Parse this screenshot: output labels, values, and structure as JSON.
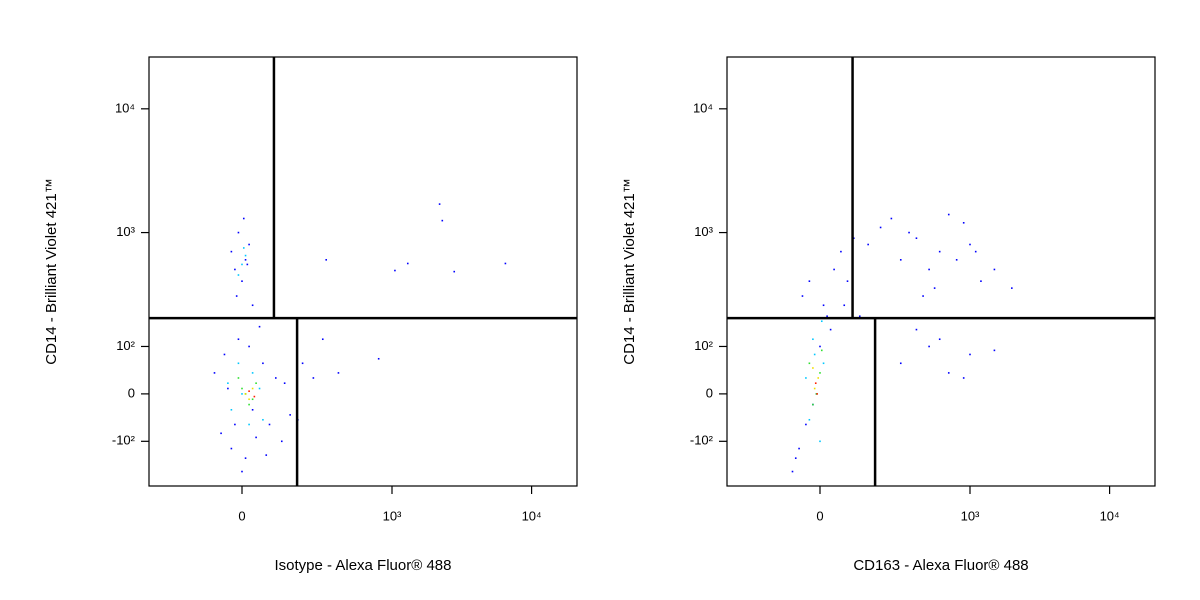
{
  "chart_data": [
    {
      "type": "scatter",
      "xlabel": "Isotype - Alexa Fluor® 488",
      "ylabel": "CD14 - Brilliant Violet 421™",
      "xlim": [
        -376,
        21100
      ],
      "ylim": [
        -268,
        26200
      ],
      "xticks": [
        0,
        {
          "value": 1000,
          "label": "10³"
        },
        {
          "value": 10000,
          "label": "10⁴"
        }
      ],
      "yticks": [
        {
          "value": -100,
          "label": "-10²"
        },
        0,
        {
          "value": 100,
          "label": "10²"
        },
        {
          "value": 1000,
          "label": "10³"
        },
        {
          "value": 10000,
          "label": "10⁴"
        }
      ],
      "gates": {
        "y": 192,
        "x_upper": 94,
        "x_lower": 177
      },
      "series": [
        {
          "color": "#0000ff",
          "x": [
            -60,
            -30,
            10,
            40,
            80,
            120,
            150,
            -80,
            -50,
            20,
            60,
            100,
            -20,
            0,
            30,
            -40,
            70,
            130,
            -10,
            50,
            0,
            -20,
            10,
            20,
            -10,
            5,
            -30,
            15,
            30,
            -15,
            200,
            300,
            400,
            800,
            2200,
            2300,
            2800,
            1300,
            1050,
            6500,
            320,
            250,
            180
          ],
          "y": [
            -80,
            -120,
            -150,
            -90,
            -60,
            -100,
            -40,
            40,
            80,
            100,
            60,
            30,
            -60,
            -200,
            -30,
            10,
            -140,
            20,
            120,
            160,
            400,
            500,
            600,
            800,
            1000,
            1300,
            700,
            550,
            250,
            300,
            60,
            120,
            40,
            70,
            1700,
            1250,
            480,
            560,
            490,
            560,
            600,
            30,
            -50
          ]
        },
        {
          "color": "#00c8ff",
          "x": [
            -30,
            0,
            30,
            60,
            -10,
            20,
            50,
            -40,
            0,
            10,
            -10,
            5
          ],
          "y": [
            -30,
            0,
            40,
            -50,
            60,
            -60,
            10,
            20,
            550,
            650,
            450,
            750
          ]
        },
        {
          "color": "#30e030",
          "x": [
            0,
            20,
            40,
            -10,
            30,
            10
          ],
          "y": [
            10,
            -20,
            20,
            30,
            -10,
            0
          ]
        },
        {
          "color": "#f0e000",
          "x": [
            10,
            30,
            20
          ],
          "y": [
            0,
            10,
            -10
          ]
        },
        {
          "color": "#ff2000",
          "x": [
            20,
            35
          ],
          "y": [
            5,
            -5
          ]
        }
      ]
    },
    {
      "type": "scatter",
      "xlabel": "CD163 - Alexa Fluor® 488",
      "ylabel": "CD14 - Brilliant Violet 421™",
      "xlim": [
        -376,
        21100
      ],
      "ylim": [
        -268,
        26200
      ],
      "xticks": [
        0,
        {
          "value": 1000,
          "label": "10³"
        },
        {
          "value": 10000,
          "label": "10⁴"
        }
      ],
      "yticks": [
        {
          "value": -100,
          "label": "-10²"
        },
        0,
        {
          "value": 100,
          "label": "10²"
        },
        {
          "value": 1000,
          "label": "10³"
        },
        {
          "value": 10000,
          "label": "10⁴"
        }
      ],
      "gates": {
        "y": 192,
        "x_upper": 96,
        "x_lower": 177
      },
      "series": [
        {
          "color": "#0000ff",
          "x": [
            -80,
            -60,
            -40,
            -20,
            0,
            20,
            -50,
            -30,
            10,
            -70,
            30,
            40,
            60,
            100,
            80,
            150,
            200,
            300,
            400,
            500,
            600,
            800,
            1000,
            1200,
            1500,
            2000,
            250,
            350,
            700,
            900,
            1100,
            450,
            550,
            300,
            500,
            700,
            1000,
            1500,
            400,
            600,
            900,
            70,
            120
          ],
          "y": [
            -200,
            -120,
            -60,
            -20,
            100,
            200,
            300,
            400,
            250,
            -150,
            150,
            500,
            700,
            900,
            400,
            800,
            1100,
            600,
            900,
            500,
            700,
            600,
            800,
            400,
            500,
            350,
            1300,
            1000,
            1400,
            1200,
            700,
            300,
            350,
            60,
            100,
            40,
            80,
            90,
            150,
            120,
            30,
            250,
            200
          ]
        },
        {
          "color": "#00c8ff",
          "x": [
            -30,
            -10,
            10,
            -20,
            0,
            -40,
            5,
            -15
          ],
          "y": [
            -50,
            0,
            60,
            120,
            -100,
            30,
            180,
            80
          ]
        },
        {
          "color": "#30e030",
          "x": [
            -20,
            0,
            -10,
            -30,
            5
          ],
          "y": [
            -20,
            40,
            0,
            60,
            90
          ]
        },
        {
          "color": "#f0e000",
          "x": [
            -15,
            -5,
            -20
          ],
          "y": [
            10,
            30,
            50
          ]
        },
        {
          "color": "#ff2000",
          "x": [
            -12,
            -8
          ],
          "y": [
            20,
            0
          ]
        }
      ]
    }
  ]
}
